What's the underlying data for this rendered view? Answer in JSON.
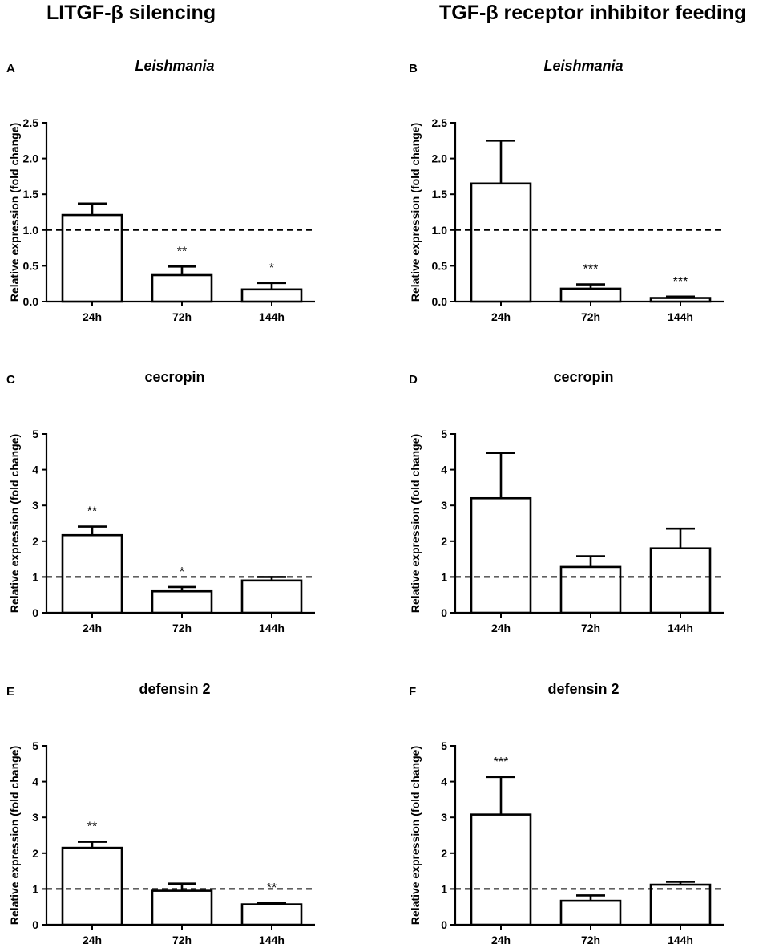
{
  "column_titles": [
    "LITGF-β silencing",
    "TGF-β receptor inhibitor feeding"
  ],
  "chart_data": [
    {
      "type": "bar",
      "panel": "A",
      "title": "Leishmania",
      "title_italic": true,
      "categories": [
        "24h",
        "72h",
        "144h"
      ],
      "values": [
        1.21,
        0.37,
        0.17
      ],
      "errors": [
        0.16,
        0.12,
        0.09
      ],
      "significance": [
        "",
        "**",
        "*"
      ],
      "ylabel": "Relative expression (fold change)",
      "ylim": [
        0,
        2.5
      ],
      "yticks": [
        "0.0",
        "0.5",
        "1.0",
        "1.5",
        "2.0",
        "2.5"
      ],
      "reference_line": 1.0
    },
    {
      "type": "bar",
      "panel": "B",
      "title": "Leishmania",
      "title_italic": true,
      "categories": [
        "24h",
        "72h",
        "144h"
      ],
      "values": [
        1.65,
        0.18,
        0.05
      ],
      "errors": [
        0.6,
        0.06,
        0.02
      ],
      "significance": [
        "",
        "***",
        "***"
      ],
      "ylabel": "Relative expression (fold change)",
      "ylim": [
        0,
        2.5
      ],
      "yticks": [
        "0.0",
        "0.5",
        "1.0",
        "1.5",
        "2.0",
        "2.5"
      ],
      "reference_line": 1.0
    },
    {
      "type": "bar",
      "panel": "C",
      "title": "cecropin",
      "title_italic": false,
      "categories": [
        "24h",
        "72h",
        "144h"
      ],
      "values": [
        2.17,
        0.6,
        0.9
      ],
      "errors": [
        0.24,
        0.12,
        0.1
      ],
      "significance": [
        "**",
        "*",
        ""
      ],
      "ylabel": "Relative expression (fold change)",
      "ylim": [
        0,
        5
      ],
      "yticks": [
        "0",
        "1",
        "2",
        "3",
        "4",
        "5"
      ],
      "reference_line": 1.0
    },
    {
      "type": "bar",
      "panel": "D",
      "title": "cecropin",
      "title_italic": false,
      "categories": [
        "24h",
        "72h",
        "144h"
      ],
      "values": [
        3.2,
        1.28,
        1.8
      ],
      "errors": [
        1.27,
        0.3,
        0.55
      ],
      "significance": [
        "",
        "",
        ""
      ],
      "ylabel": "Relative expression (fold change)",
      "ylim": [
        0,
        5
      ],
      "yticks": [
        "0",
        "1",
        "2",
        "3",
        "4",
        "5"
      ],
      "reference_line": 1.0
    },
    {
      "type": "bar",
      "panel": "E",
      "title": "defensin 2",
      "title_italic": false,
      "categories": [
        "24h",
        "72h",
        "144h"
      ],
      "values": [
        2.15,
        0.95,
        0.57
      ],
      "errors": [
        0.17,
        0.2,
        0.03
      ],
      "significance": [
        "**",
        "",
        "**"
      ],
      "ylabel": "Relative expression (fold change)",
      "ylim": [
        0,
        5
      ],
      "yticks": [
        "0",
        "1",
        "2",
        "3",
        "4",
        "5"
      ],
      "reference_line": 1.0
    },
    {
      "type": "bar",
      "panel": "F",
      "title": "defensin 2",
      "title_italic": false,
      "categories": [
        "24h",
        "72h",
        "144h"
      ],
      "values": [
        3.08,
        0.67,
        1.12
      ],
      "errors": [
        1.05,
        0.15,
        0.08
      ],
      "significance": [
        "***",
        "",
        ""
      ],
      "ylabel": "Relative expression (fold change)",
      "ylim": [
        0,
        5
      ],
      "yticks": [
        "0",
        "1",
        "2",
        "3",
        "4",
        "5"
      ],
      "reference_line": 1.0
    }
  ]
}
